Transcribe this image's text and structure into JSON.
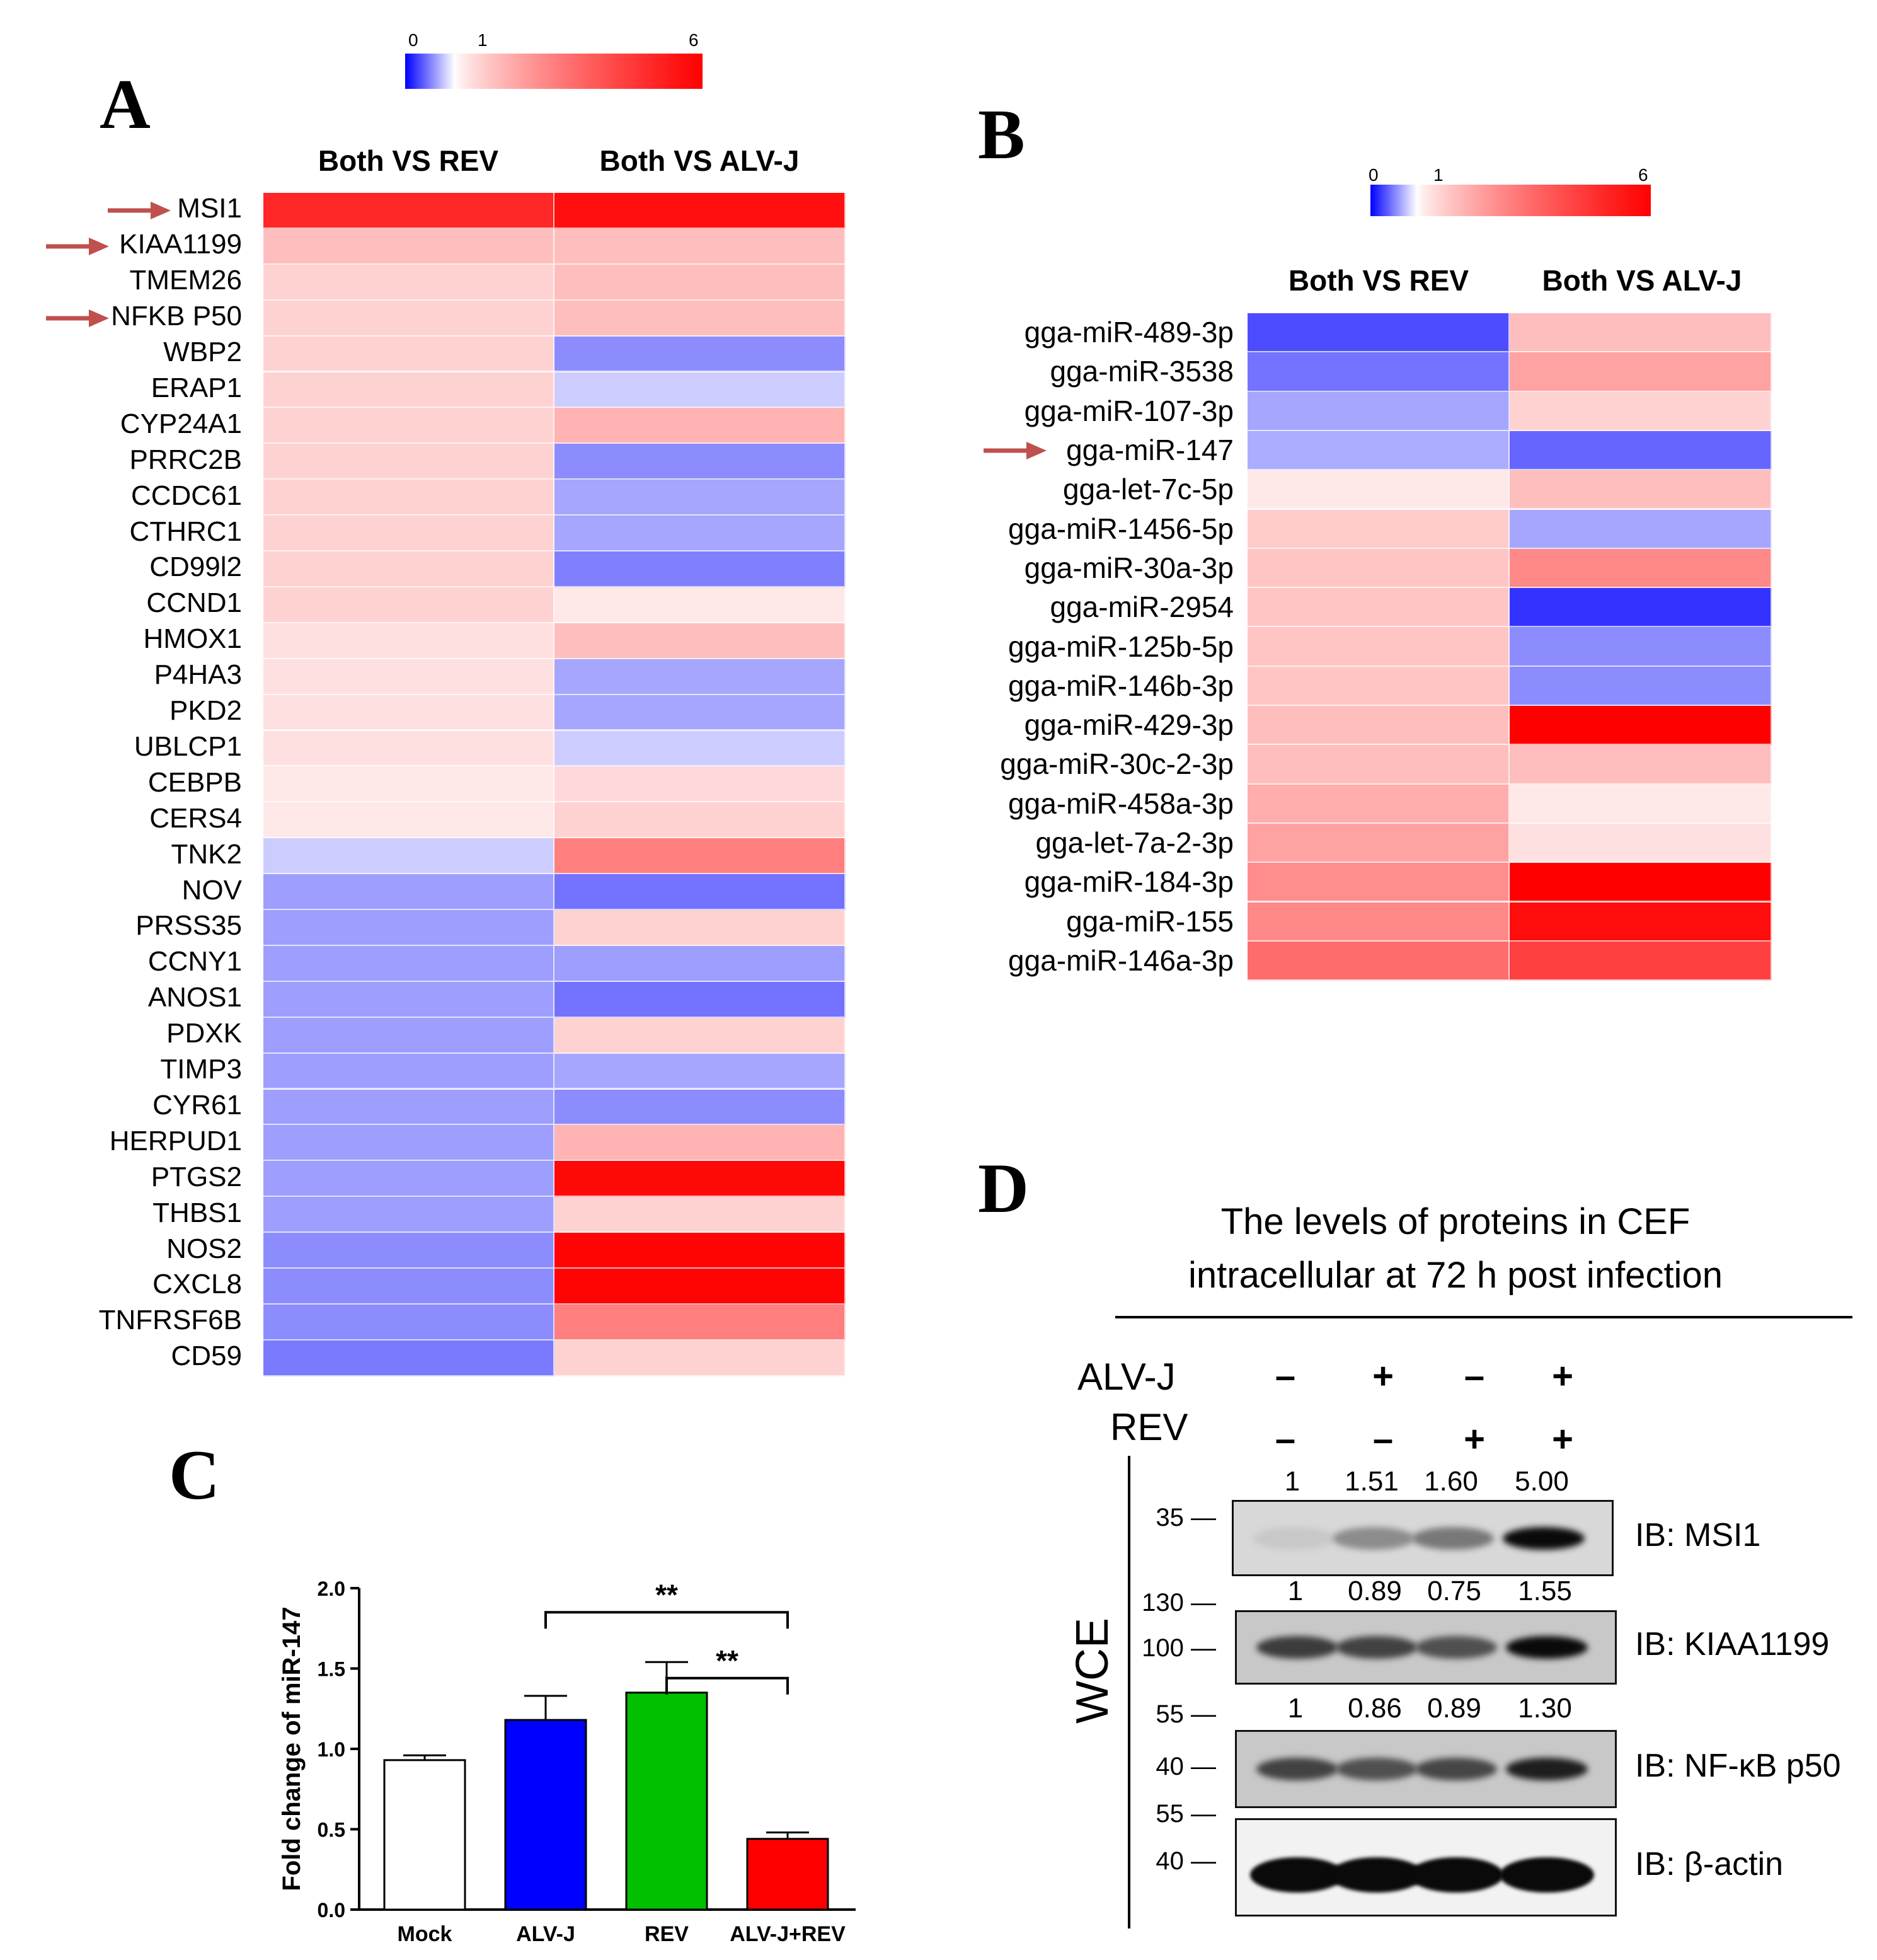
{
  "colorbar": {
    "tick_min": "0",
    "tick_mid": "1",
    "tick_max": "6",
    "low_color": "#0000ff",
    "mid_color": "#ffffff",
    "high_color": "#ff0000"
  },
  "panelA": {
    "letter": "A",
    "columns": [
      "Both VS REV",
      "Both VS ALV-J"
    ],
    "genes": [
      "MSI1",
      "KIAA1199",
      "TMEM26",
      "NFKB P50",
      "WBP2",
      "ERAP1",
      "CYP24A1",
      "PRRC2B",
      "CCDC61",
      "CTHRC1",
      "CD99l2",
      "CCND1",
      "HMOX1",
      "P4HA3",
      "PKD2",
      "UBLCP1",
      "CEBPB",
      "CERS4",
      "TNK2",
      "NOV",
      "PRSS35",
      "CCNY1",
      "ANOS1",
      "PDXK",
      "TIMP3",
      "CYR61",
      "HERPUD1",
      "PTGS2",
      "THBS1",
      "NOS2",
      "CXCL8",
      "TNFRSF6B",
      "CD59"
    ],
    "arrowed": [
      "MSI1",
      "KIAA1199",
      "NFKB P50"
    ],
    "fold_both_vs_rev": [
      5.0,
      1.8,
      1.5,
      1.5,
      1.5,
      1.5,
      1.5,
      1.5,
      1.5,
      1.5,
      1.5,
      1.5,
      1.3,
      1.3,
      1.3,
      1.3,
      1.2,
      1.2,
      0.8,
      0.62,
      0.62,
      0.62,
      0.62,
      0.62,
      0.62,
      0.62,
      0.62,
      0.62,
      0.62,
      0.55,
      0.55,
      0.55,
      0.48
    ],
    "fold_both_vs_alvj": [
      5.6,
      1.8,
      1.8,
      1.8,
      0.55,
      0.8,
      2.0,
      0.55,
      0.65,
      0.65,
      0.5,
      1.2,
      1.8,
      0.65,
      0.65,
      0.8,
      1.4,
      1.5,
      3.0,
      0.45,
      1.5,
      0.62,
      0.45,
      1.5,
      0.65,
      0.55,
      2.0,
      5.8,
      1.5,
      5.9,
      5.9,
      3.0,
      1.5
    ]
  },
  "panelB": {
    "letter": "B",
    "columns": [
      "Both VS REV",
      "Both VS ALV-J"
    ],
    "mirnas": [
      "gga-miR-489-3p",
      "gga-miR-3538",
      "gga-miR-107-3p",
      "gga-miR-147",
      "gga-let-7c-5p",
      "gga-miR-1456-5p",
      "gga-miR-30a-3p",
      "gga-miR-2954",
      "gga-miR-125b-5p",
      "gga-miR-146b-3p",
      "gga-miR-429-3p",
      "gga-miR-30c-2-3p",
      "gga-miR-458a-3p",
      "gga-let-7a-2-3p",
      "gga-miR-184-3p",
      "gga-miR-155",
      "gga-miR-146a-3p"
    ],
    "arrowed": [
      "gga-miR-147"
    ],
    "fold_both_vs_rev": [
      0.3,
      0.45,
      0.65,
      0.68,
      1.2,
      1.6,
      1.7,
      1.7,
      1.7,
      1.7,
      1.8,
      1.8,
      2.1,
      2.3,
      2.7,
      2.8,
      3.4
    ],
    "fold_both_vs_alvj": [
      1.8,
      2.3,
      1.5,
      0.4,
      1.8,
      0.65,
      2.8,
      0.2,
      0.55,
      0.55,
      6.0,
      1.8,
      1.2,
      1.3,
      6.0,
      5.7,
      4.4
    ]
  },
  "panelC": {
    "letter": "C",
    "chart_data": {
      "type": "bar",
      "categories": [
        "Mock",
        "ALV-J",
        "REV",
        "ALV-J+REV"
      ],
      "values": [
        0.93,
        1.18,
        1.35,
        0.44
      ],
      "errors": [
        0.03,
        0.15,
        0.19,
        0.04
      ],
      "colors": [
        "#ffffff",
        "#0000ff",
        "#00c000",
        "#ff0000"
      ],
      "ylabel": "Fold change of miR-147",
      "xlabel": "",
      "ylim": [
        0.0,
        2.0
      ],
      "yticks": [
        "0.0",
        "0.5",
        "1.0",
        "1.5",
        "2.0"
      ],
      "significance": [
        {
          "from": "ALV-J",
          "to": "ALV-J+REV",
          "label": "**"
        },
        {
          "from": "REV",
          "to": "ALV-J+REV",
          "label": "**"
        }
      ]
    }
  },
  "panelD": {
    "letter": "D",
    "title_line1": "The levels of proteins in CEF",
    "title_line2": "intracellular at 72 h post infection",
    "row_labels": [
      "ALV-J",
      "REV"
    ],
    "alvj_signs": [
      "–",
      "+",
      "–",
      "+"
    ],
    "rev_signs": [
      "–",
      "–",
      "+",
      "+"
    ],
    "side_label": "WCE",
    "blots": [
      {
        "ib": "IB: MSI1",
        "quant": [
          "1",
          "1.51",
          "1.60",
          "5.00"
        ],
        "markers": [
          "35 —"
        ],
        "band_strength": [
          0.05,
          0.35,
          0.45,
          1.0
        ]
      },
      {
        "ib": "IB: KIAA1199",
        "quant": [
          "1",
          "0.89",
          "0.75",
          "1.55"
        ],
        "markers": [
          "130 —",
          "100 —"
        ],
        "band_strength": [
          0.75,
          0.72,
          0.65,
          1.0
        ]
      },
      {
        "ib": "IB: NF-κB p50",
        "quant": [
          "1",
          "0.86",
          "0.89",
          "1.30"
        ],
        "markers": [
          "55 —",
          "40 —"
        ],
        "band_strength": [
          0.72,
          0.65,
          0.7,
          0.9
        ]
      },
      {
        "ib": "IB: β-actin",
        "quant": [],
        "markers": [
          "55 —",
          "40 —"
        ],
        "band_strength": [
          1.0,
          1.0,
          1.0,
          1.0
        ]
      }
    ]
  }
}
